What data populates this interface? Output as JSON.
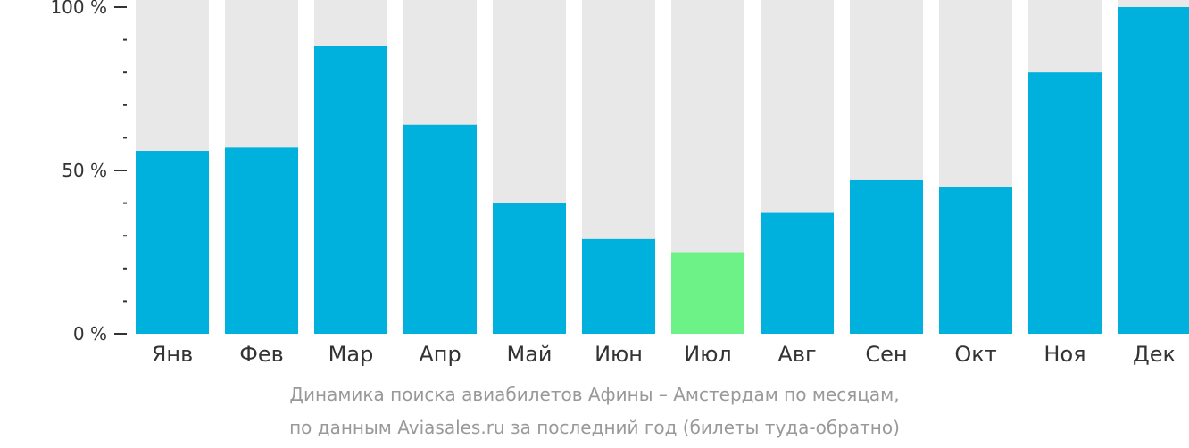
{
  "chart_data": {
    "type": "bar",
    "categories": [
      "Янв",
      "Фев",
      "Мар",
      "Апр",
      "Май",
      "Июн",
      "Июл",
      "Авг",
      "Сен",
      "Окт",
      "Ноя",
      "Дек"
    ],
    "values": [
      56,
      57,
      88,
      64,
      40,
      29,
      25,
      37,
      47,
      45,
      80,
      100
    ],
    "highlight_index": 6,
    "ylim": [
      0,
      100
    ],
    "yticks": [
      {
        "value": 0,
        "label": "0 %"
      },
      {
        "value": 50,
        "label": "50 %"
      },
      {
        "value": 100,
        "label": "100 %"
      }
    ],
    "minor_ytick_step": 10,
    "grid": false,
    "colors": {
      "bar": "#00b0dd",
      "highlight": "#6cf287",
      "background": "#e8e8e8",
      "axis": "#333333"
    }
  },
  "caption": {
    "line1": "Динамика поиска авиабилетов Афины – Амстердам по месяцам,",
    "line2": "по данным Aviasales.ru за последний год (билеты туда-обратно)"
  }
}
